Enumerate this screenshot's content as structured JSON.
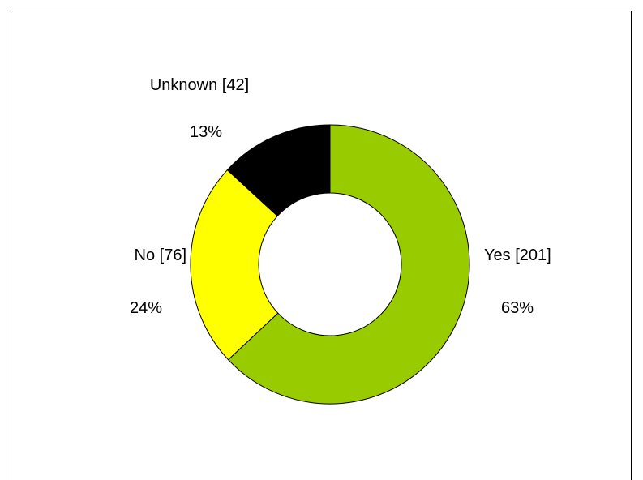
{
  "chart_data": {
    "type": "pie",
    "donut": true,
    "slices": [
      {
        "category": "Yes",
        "count": "[201]",
        "value": 201,
        "percent": "63%",
        "color": "#99cc00"
      },
      {
        "category": "No",
        "count": "[76]",
        "value": 76,
        "percent": "24%",
        "color": "#ffff00"
      },
      {
        "category": "Unknown",
        "count": "[42]",
        "value": 42,
        "percent": "13%",
        "color": "#000000"
      }
    ],
    "title": "",
    "legend": "none"
  }
}
